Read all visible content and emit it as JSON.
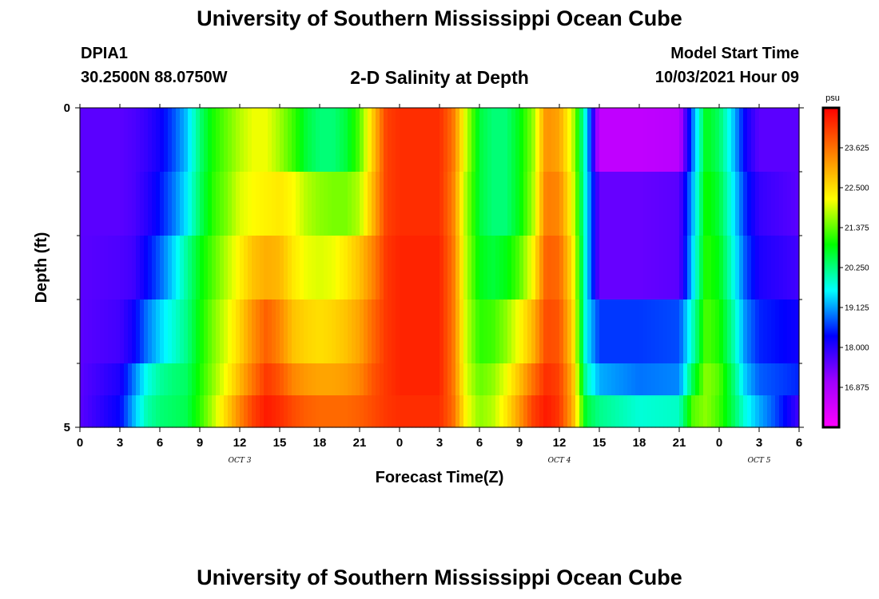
{
  "header": {
    "main_title": "University of Southern Mississippi Ocean Cube",
    "station_id": "DPIA1",
    "station_coords": "30.2500N  88.0750W",
    "chart_title": "2-D Salinity at Depth",
    "model_start_label": "Model Start Time",
    "model_start_value": "10/03/2021 Hour 09"
  },
  "footer": {
    "main_title": "University of Southern Mississippi Ocean Cube"
  },
  "chart_data": {
    "type": "heatmap",
    "title": "2-D Salinity at Depth",
    "xlabel": "Forecast Time(Z)",
    "ylabel": "Depth (ft)",
    "x_tick_labels": [
      "0",
      "3",
      "6",
      "9",
      "12",
      "15",
      "18",
      "21",
      "0",
      "3",
      "6",
      "9",
      "12",
      "15",
      "18",
      "21",
      "0",
      "3",
      "6"
    ],
    "x_day_labels": [
      {
        "label": "OCT 3",
        "at_hour": 12
      },
      {
        "label": "OCT 4",
        "at_hour": 36
      },
      {
        "label": "OCT 5",
        "at_hour": 51
      }
    ],
    "x_range_hours": [
      0,
      54
    ],
    "y_range_ft": [
      0,
      5
    ],
    "y_tick_labels": [
      "0",
      "5"
    ],
    "y_minor_ticks": [
      1,
      2,
      3,
      4
    ],
    "colorbar": {
      "unit": "psu",
      "min": 15.75,
      "max": 24.75,
      "tick_values": [
        "16.875",
        "18.000",
        "19.125",
        "20.250",
        "21.375",
        "22.500",
        "23.625"
      ],
      "colors": [
        "#ff00ff",
        "#a000ff",
        "#0000ff",
        "#00ffff",
        "#00ff00",
        "#ffff00",
        "#ff8000",
        "#ff0000"
      ]
    },
    "depth_layers": [
      {
        "depth_ft": 0.5,
        "values": [
          [
            0,
            17.6
          ],
          [
            3,
            17.6
          ],
          [
            4,
            17.7
          ],
          [
            5,
            17.9
          ],
          [
            6,
            18.2
          ],
          [
            7,
            18.7
          ],
          [
            8,
            19.3
          ],
          [
            9,
            20.3
          ],
          [
            10,
            21.0
          ],
          [
            11,
            21.4
          ],
          [
            12,
            21.8
          ],
          [
            13,
            22.1
          ],
          [
            14,
            22.1
          ],
          [
            15,
            21.7
          ],
          [
            16,
            21.2
          ],
          [
            17,
            20.6
          ],
          [
            18,
            20.3
          ],
          [
            19,
            20.3
          ],
          [
            20,
            20.6
          ],
          [
            21,
            21.3
          ],
          [
            22,
            22.7
          ],
          [
            23,
            24.1
          ],
          [
            24,
            24.3
          ],
          [
            27,
            24.3
          ],
          [
            28,
            23.6
          ],
          [
            29,
            21.9
          ],
          [
            30,
            20.6
          ],
          [
            31,
            20.3
          ],
          [
            32,
            20.3
          ],
          [
            33,
            20.8
          ],
          [
            34,
            21.6
          ],
          [
            35,
            23.3
          ],
          [
            36,
            23.1
          ],
          [
            37,
            21.9
          ],
          [
            38,
            19.6
          ],
          [
            39,
            16.6
          ],
          [
            42,
            16.6
          ],
          [
            45,
            16.7
          ],
          [
            46,
            18.9
          ],
          [
            47,
            20.8
          ],
          [
            48,
            20.4
          ],
          [
            49,
            19.4
          ],
          [
            50,
            18.2
          ],
          [
            51,
            17.6
          ],
          [
            54,
            17.6
          ]
        ]
      },
      {
        "depth_ft": 1.5,
        "values": [
          [
            0,
            17.6
          ],
          [
            3,
            17.6
          ],
          [
            4,
            17.7
          ],
          [
            5,
            18.0
          ],
          [
            6,
            18.4
          ],
          [
            7,
            18.9
          ],
          [
            8,
            19.5
          ],
          [
            9,
            20.4
          ],
          [
            10,
            21.1
          ],
          [
            11,
            21.5
          ],
          [
            12,
            22.0
          ],
          [
            13,
            22.2
          ],
          [
            14,
            22.3
          ],
          [
            15,
            22.4
          ],
          [
            16,
            22.2
          ],
          [
            17,
            21.8
          ],
          [
            18,
            21.6
          ],
          [
            19,
            21.5
          ],
          [
            20,
            21.5
          ],
          [
            21,
            21.8
          ],
          [
            22,
            22.9
          ],
          [
            23,
            24.1
          ],
          [
            24,
            24.3
          ],
          [
            27,
            24.3
          ],
          [
            28,
            23.5
          ],
          [
            29,
            21.7
          ],
          [
            30,
            20.6
          ],
          [
            31,
            20.3
          ],
          [
            32,
            20.3
          ],
          [
            33,
            20.8
          ],
          [
            34,
            21.7
          ],
          [
            35,
            23.5
          ],
          [
            36,
            23.4
          ],
          [
            37,
            22.1
          ],
          [
            38,
            19.6
          ],
          [
            39,
            17.5
          ],
          [
            42,
            17.5
          ],
          [
            45,
            17.6
          ],
          [
            46,
            19.2
          ],
          [
            47,
            21.0
          ],
          [
            48,
            20.6
          ],
          [
            49,
            19.6
          ],
          [
            50,
            18.5
          ],
          [
            51,
            17.9
          ],
          [
            54,
            17.6
          ]
        ]
      },
      {
        "depth_ft": 2.5,
        "values": [
          [
            0,
            17.6
          ],
          [
            3,
            17.7
          ],
          [
            4,
            17.8
          ],
          [
            5,
            18.3
          ],
          [
            6,
            18.8
          ],
          [
            7,
            19.4
          ],
          [
            8,
            20.1
          ],
          [
            9,
            20.8
          ],
          [
            10,
            21.3
          ],
          [
            11,
            21.8
          ],
          [
            12,
            22.3
          ],
          [
            13,
            22.8
          ],
          [
            14,
            23.0
          ],
          [
            15,
            22.9
          ],
          [
            16,
            22.4
          ],
          [
            17,
            22.1
          ],
          [
            18,
            22.0
          ],
          [
            19,
            22.1
          ],
          [
            20,
            22.4
          ],
          [
            21,
            22.8
          ],
          [
            22,
            23.4
          ],
          [
            23,
            24.2
          ],
          [
            24,
            24.4
          ],
          [
            27,
            24.4
          ],
          [
            28,
            23.6
          ],
          [
            29,
            21.8
          ],
          [
            30,
            20.8
          ],
          [
            31,
            20.6
          ],
          [
            32,
            20.8
          ],
          [
            33,
            21.3
          ],
          [
            34,
            22.2
          ],
          [
            35,
            23.8
          ],
          [
            36,
            23.7
          ],
          [
            37,
            22.4
          ],
          [
            38,
            19.6
          ],
          [
            39,
            17.5
          ],
          [
            42,
            17.5
          ],
          [
            45,
            17.6
          ],
          [
            46,
            19.4
          ],
          [
            47,
            21.1
          ],
          [
            48,
            20.8
          ],
          [
            49,
            19.8
          ],
          [
            50,
            18.7
          ],
          [
            51,
            18.1
          ],
          [
            54,
            17.8
          ]
        ]
      },
      {
        "depth_ft": 3.5,
        "values": [
          [
            0,
            17.6
          ],
          [
            3,
            17.8
          ],
          [
            4,
            18.2
          ],
          [
            5,
            18.9
          ],
          [
            6,
            19.4
          ],
          [
            7,
            19.8
          ],
          [
            8,
            20.2
          ],
          [
            9,
            20.9
          ],
          [
            10,
            21.5
          ],
          [
            11,
            22.0
          ],
          [
            12,
            22.6
          ],
          [
            13,
            23.3
          ],
          [
            14,
            23.8
          ],
          [
            15,
            23.4
          ],
          [
            16,
            22.8
          ],
          [
            17,
            22.6
          ],
          [
            18,
            22.5
          ],
          [
            19,
            22.6
          ],
          [
            20,
            22.8
          ],
          [
            21,
            23.1
          ],
          [
            22,
            23.7
          ],
          [
            23,
            24.2
          ],
          [
            24,
            24.4
          ],
          [
            27,
            24.4
          ],
          [
            28,
            23.6
          ],
          [
            29,
            21.9
          ],
          [
            30,
            21.1
          ],
          [
            31,
            21.2
          ],
          [
            32,
            21.6
          ],
          [
            33,
            22.2
          ],
          [
            34,
            22.9
          ],
          [
            35,
            24.0
          ],
          [
            36,
            23.9
          ],
          [
            37,
            22.6
          ],
          [
            38,
            19.6
          ],
          [
            39,
            18.6
          ],
          [
            42,
            18.6
          ],
          [
            45,
            18.7
          ],
          [
            46,
            19.9
          ],
          [
            47,
            21.3
          ],
          [
            48,
            21.0
          ],
          [
            49,
            20.1
          ],
          [
            50,
            19.0
          ],
          [
            51,
            18.5
          ],
          [
            54,
            18.2
          ]
        ]
      },
      {
        "depth_ft": 4.5,
        "values": [
          [
            0,
            17.6
          ],
          [
            3,
            18.1
          ],
          [
            4,
            18.9
          ],
          [
            5,
            19.7
          ],
          [
            6,
            20.1
          ],
          [
            7,
            20.3
          ],
          [
            8,
            20.4
          ],
          [
            9,
            21.0
          ],
          [
            10,
            21.6
          ],
          [
            11,
            22.2
          ],
          [
            12,
            22.9
          ],
          [
            13,
            23.6
          ],
          [
            14,
            24.2
          ],
          [
            15,
            23.9
          ],
          [
            16,
            23.4
          ],
          [
            17,
            23.2
          ],
          [
            18,
            23.1
          ],
          [
            19,
            23.1
          ],
          [
            20,
            23.2
          ],
          [
            21,
            23.4
          ],
          [
            22,
            23.9
          ],
          [
            23,
            24.2
          ],
          [
            24,
            24.4
          ],
          [
            27,
            24.4
          ],
          [
            28,
            23.6
          ],
          [
            29,
            22.0
          ],
          [
            30,
            21.4
          ],
          [
            31,
            21.6
          ],
          [
            32,
            22.1
          ],
          [
            33,
            22.8
          ],
          [
            34,
            23.6
          ],
          [
            35,
            24.3
          ],
          [
            36,
            24.1
          ],
          [
            37,
            22.9
          ],
          [
            38,
            20.0
          ],
          [
            39,
            19.2
          ],
          [
            42,
            18.9
          ],
          [
            45,
            19.0
          ],
          [
            46,
            20.5
          ],
          [
            47,
            21.6
          ],
          [
            48,
            21.3
          ],
          [
            49,
            20.4
          ],
          [
            50,
            19.3
          ],
          [
            51,
            18.8
          ],
          [
            54,
            18.5
          ]
        ]
      },
      {
        "depth_ft": 5.0,
        "values": [
          [
            0,
            17.6
          ],
          [
            3,
            18.3
          ],
          [
            4,
            19.2
          ],
          [
            5,
            20.0
          ],
          [
            6,
            20.3
          ],
          [
            7,
            20.4
          ],
          [
            8,
            20.5
          ],
          [
            9,
            21.1
          ],
          [
            10,
            21.8
          ],
          [
            11,
            22.6
          ],
          [
            12,
            23.4
          ],
          [
            13,
            24.1
          ],
          [
            14,
            24.5
          ],
          [
            15,
            24.3
          ],
          [
            16,
            24.0
          ],
          [
            17,
            23.8
          ],
          [
            18,
            23.7
          ],
          [
            19,
            23.7
          ],
          [
            20,
            23.7
          ],
          [
            21,
            23.8
          ],
          [
            22,
            24.0
          ],
          [
            23,
            24.2
          ],
          [
            24,
            24.3
          ],
          [
            27,
            24.3
          ],
          [
            28,
            23.7
          ],
          [
            29,
            22.2
          ],
          [
            30,
            21.6
          ],
          [
            31,
            21.8
          ],
          [
            32,
            22.4
          ],
          [
            33,
            23.2
          ],
          [
            34,
            24.1
          ],
          [
            35,
            24.5
          ],
          [
            36,
            24.2
          ],
          [
            37,
            23.0
          ],
          [
            38,
            20.6
          ],
          [
            39,
            20.2
          ],
          [
            42,
            19.8
          ],
          [
            45,
            19.9
          ],
          [
            46,
            21.3
          ],
          [
            47,
            21.6
          ],
          [
            48,
            21.2
          ],
          [
            49,
            20.5
          ],
          [
            50,
            19.7
          ],
          [
            51,
            19.2
          ],
          [
            52,
            18.8
          ],
          [
            53,
            18.3
          ],
          [
            54,
            17.8
          ]
        ]
      }
    ]
  }
}
